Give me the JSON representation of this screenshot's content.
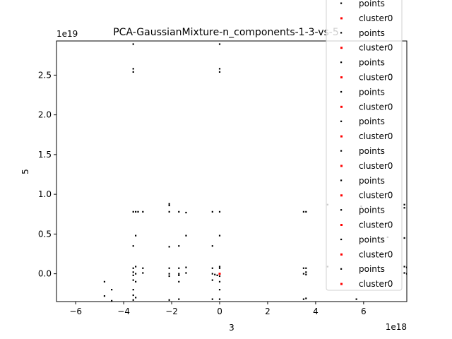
{
  "chart_data": {
    "type": "scatter",
    "title": "PCA-GaussianMixture-n_components-1-3-vs-5",
    "xlabel": "3",
    "ylabel": "5",
    "x_offset_label": "1e18",
    "y_offset_label": "1e19",
    "xlim": [
      -6.8,
      7.8
    ],
    "ylim": [
      -0.35,
      2.93
    ],
    "xticks": [
      -6,
      -4,
      -2,
      0,
      2,
      4,
      6
    ],
    "xtick_labels": [
      "−6",
      "−4",
      "−2",
      "0",
      "2",
      "4",
      "6"
    ],
    "yticks": [
      0.0,
      0.5,
      1.0,
      1.5,
      2.0,
      2.5
    ],
    "ytick_labels": [
      "0.0",
      "0.5",
      "1.0",
      "1.5",
      "2.0",
      "2.5"
    ],
    "legend_position": "upper-right",
    "legend_entries": [
      {
        "label": "points",
        "color": "#000000"
      },
      {
        "label": "cluster0",
        "color": "#ff0000"
      },
      {
        "label": "points",
        "color": "#000000"
      },
      {
        "label": "cluster0",
        "color": "#ff0000"
      },
      {
        "label": "points",
        "color": "#000000"
      },
      {
        "label": "cluster0",
        "color": "#ff0000"
      },
      {
        "label": "points",
        "color": "#000000"
      },
      {
        "label": "cluster0",
        "color": "#ff0000"
      },
      {
        "label": "points",
        "color": "#000000"
      },
      {
        "label": "cluster0",
        "color": "#ff0000"
      },
      {
        "label": "points",
        "color": "#000000"
      },
      {
        "label": "cluster0",
        "color": "#ff0000"
      },
      {
        "label": "points",
        "color": "#000000"
      },
      {
        "label": "cluster0",
        "color": "#ff0000"
      },
      {
        "label": "points",
        "color": "#000000"
      },
      {
        "label": "cluster0",
        "color": "#ff0000"
      },
      {
        "label": "points",
        "color": "#000000"
      },
      {
        "label": "cluster0",
        "color": "#ff0000"
      },
      {
        "label": "points",
        "color": "#000000"
      },
      {
        "label": "cluster0",
        "color": "#ff0000"
      }
    ],
    "series": [
      {
        "name": "points",
        "color": "#000000",
        "points": [
          [
            -3.6,
            2.89
          ],
          [
            -3.6,
            2.58
          ],
          [
            -3.6,
            2.54
          ],
          [
            0.0,
            2.89
          ],
          [
            0.0,
            2.58
          ],
          [
            0.0,
            2.54
          ],
          [
            -2.1,
            0.88
          ],
          [
            -2.1,
            0.86
          ],
          [
            -3.6,
            0.78
          ],
          [
            -3.5,
            0.78
          ],
          [
            -3.4,
            0.78
          ],
          [
            -3.2,
            0.78
          ],
          [
            -2.1,
            0.78
          ],
          [
            -1.7,
            0.78
          ],
          [
            -1.4,
            0.77
          ],
          [
            -0.3,
            0.78
          ],
          [
            0.0,
            0.78
          ],
          [
            3.5,
            0.78
          ],
          [
            3.6,
            0.78
          ],
          [
            4.5,
            0.87
          ],
          [
            5.9,
            0.85
          ],
          [
            7.7,
            0.87
          ],
          [
            7.7,
            0.83
          ],
          [
            -3.5,
            0.48
          ],
          [
            -1.4,
            0.48
          ],
          [
            0.0,
            0.48
          ],
          [
            7.0,
            0.46
          ],
          [
            7.7,
            0.45
          ],
          [
            -3.6,
            0.35
          ],
          [
            -2.1,
            0.34
          ],
          [
            -1.7,
            0.35
          ],
          [
            -0.3,
            0.35
          ],
          [
            -3.5,
            0.09
          ],
          [
            -3.6,
            0.07
          ],
          [
            -3.2,
            0.07
          ],
          [
            -2.1,
            0.07
          ],
          [
            -1.7,
            0.07
          ],
          [
            -1.4,
            0.08
          ],
          [
            -0.3,
            0.07
          ],
          [
            0.0,
            0.09
          ],
          [
            0.0,
            0.07
          ],
          [
            3.5,
            0.07
          ],
          [
            3.6,
            0.07
          ],
          [
            4.5,
            0.09
          ],
          [
            7.7,
            0.09
          ],
          [
            7.8,
            0.08
          ],
          [
            -3.6,
            0.02
          ],
          [
            -3.5,
            0.0
          ],
          [
            -3.6,
            -0.02
          ],
          [
            -3.2,
            0.01
          ],
          [
            -2.1,
            0.0
          ],
          [
            -2.1,
            -0.03
          ],
          [
            -1.7,
            0.0
          ],
          [
            -1.7,
            -0.02
          ],
          [
            -1.4,
            0.01
          ],
          [
            -0.3,
            0.0
          ],
          [
            -0.2,
            -0.01
          ],
          [
            -0.1,
            -0.02
          ],
          [
            0.0,
            0.0
          ],
          [
            0.0,
            -0.03
          ],
          [
            3.5,
            0.0
          ],
          [
            3.6,
            -0.01
          ],
          [
            3.6,
            0.02
          ],
          [
            7.7,
            0.01
          ],
          [
            7.8,
            0.0
          ],
          [
            -4.8,
            -0.1
          ],
          [
            -3.6,
            -0.08
          ],
          [
            -3.5,
            -0.1
          ],
          [
            -1.7,
            -0.1
          ],
          [
            -0.3,
            -0.08
          ],
          [
            0.0,
            -0.1
          ],
          [
            -4.5,
            -0.2
          ],
          [
            -3.6,
            -0.2
          ],
          [
            0.0,
            -0.2
          ],
          [
            -4.8,
            -0.28
          ],
          [
            -3.6,
            -0.27
          ],
          [
            -3.5,
            -0.3
          ],
          [
            -4.5,
            -0.34
          ],
          [
            -3.6,
            -0.33
          ],
          [
            -2.1,
            -0.33
          ],
          [
            -1.7,
            -0.32
          ],
          [
            -0.3,
            -0.32
          ],
          [
            0.0,
            -0.32
          ],
          [
            3.5,
            -0.32
          ],
          [
            3.6,
            -0.31
          ],
          [
            5.7,
            -0.32
          ]
        ]
      },
      {
        "name": "cluster0",
        "color": "#ff0000",
        "points": [
          [
            0.0,
            0.0
          ]
        ]
      }
    ]
  }
}
